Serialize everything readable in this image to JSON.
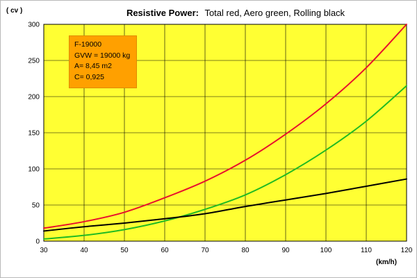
{
  "chart_data": {
    "type": "line",
    "title_bold": "Resistive Power:",
    "title_rest": "Total red, Aero green, Rolling black",
    "ylabel": "( cv )",
    "xlabel": "(km/h)",
    "xlim": [
      30,
      120
    ],
    "ylim": [
      0,
      300
    ],
    "x_ticks": [
      30,
      40,
      50,
      60,
      70,
      80,
      90,
      100,
      110,
      120
    ],
    "y_ticks": [
      0,
      50,
      100,
      150,
      200,
      250,
      300
    ],
    "grid": true,
    "background_color": "#ffff33",
    "x": [
      30,
      40,
      50,
      60,
      70,
      80,
      90,
      100,
      110,
      120
    ],
    "series": [
      {
        "color": "#e8112d",
        "values": [
          18,
          27,
          40,
          60,
          83,
          112,
          148,
          190,
          240,
          300
        ]
      },
      {
        "color": "#22bb22",
        "values": [
          3,
          8,
          16,
          28,
          44,
          64,
          92,
          126,
          166,
          215
        ]
      },
      {
        "color": "#000000",
        "values": [
          14,
          20,
          25,
          31,
          38,
          48,
          57,
          66,
          76,
          86
        ]
      }
    ]
  },
  "info_box": {
    "lines": [
      "F-19000",
      "GVW = 19000 kg",
      "A= 8,45 m2",
      "C= 0,925"
    ],
    "color": "#ffa000"
  }
}
